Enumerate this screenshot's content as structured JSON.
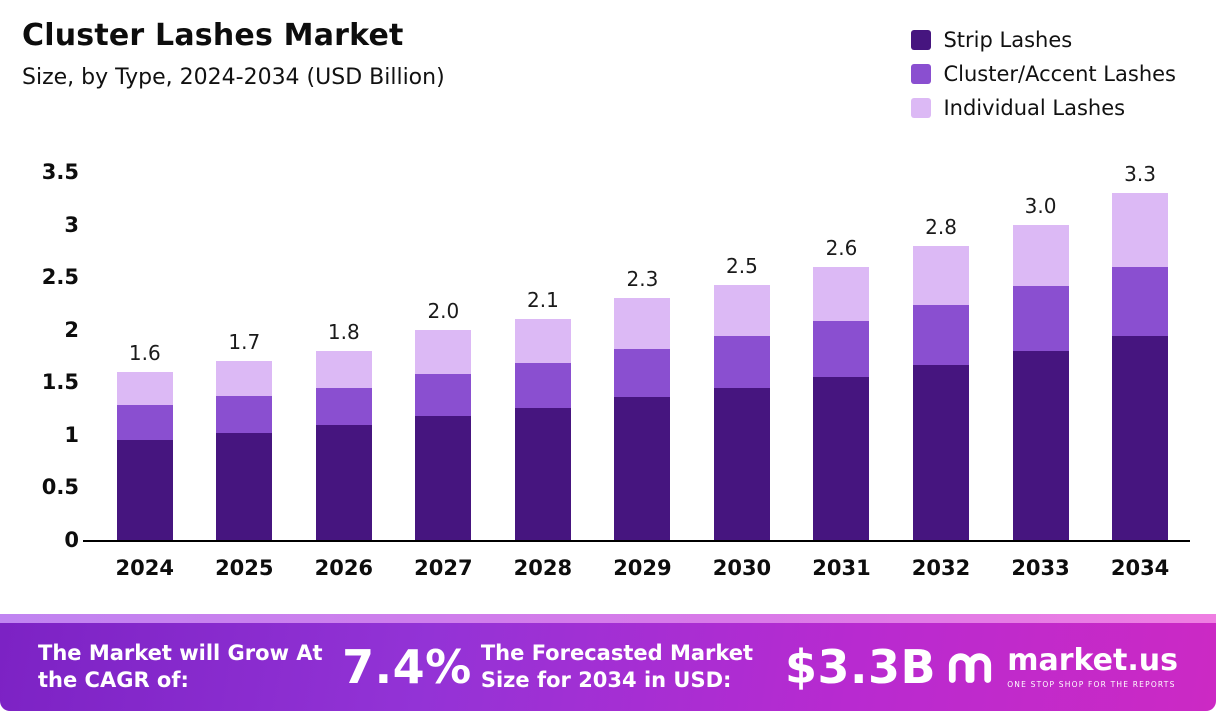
{
  "header": {
    "title": "Cluster Lashes Market",
    "subtitle": "Size, by Type, 2024-2034 (USD Billion)"
  },
  "legend": [
    {
      "label": "Strip Lashes",
      "color": "#46157f"
    },
    {
      "label": "Cluster/Accent Lashes",
      "color": "#8a4fd0"
    },
    {
      "label": "Individual Lashes",
      "color": "#dcb9f5"
    }
  ],
  "chart_data": {
    "type": "bar",
    "stacked": true,
    "title": "Cluster Lashes Market",
    "subtitle": "Size, by Type, 2024-2034 (USD Billion)",
    "categories": [
      "2024",
      "2025",
      "2026",
      "2027",
      "2028",
      "2029",
      "2030",
      "2031",
      "2032",
      "2033",
      "2034"
    ],
    "series": [
      {
        "name": "Strip Lashes",
        "color": "#46157f",
        "values": [
          0.95,
          1.02,
          1.09,
          1.18,
          1.26,
          1.36,
          1.45,
          1.55,
          1.66,
          1.8,
          1.94
        ]
      },
      {
        "name": "Cluster/Accent Lashes",
        "color": "#8a4fd0",
        "values": [
          0.33,
          0.35,
          0.36,
          0.4,
          0.42,
          0.46,
          0.49,
          0.53,
          0.58,
          0.62,
          0.66
        ]
      },
      {
        "name": "Individual Lashes",
        "color": "#dcb9f5",
        "values": [
          0.32,
          0.33,
          0.35,
          0.42,
          0.42,
          0.48,
          0.49,
          0.52,
          0.56,
          0.58,
          0.7
        ]
      }
    ],
    "totals": [
      "1.6",
      "1.7",
      "1.8",
      "2.0",
      "2.1",
      "2.3",
      "2.5",
      "2.6",
      "2.8",
      "3.0",
      "3.3"
    ],
    "y_ticks": [
      "3.5",
      "3",
      "2.5",
      "2",
      "1.5",
      "1",
      "0.5",
      "0"
    ],
    "ylim": [
      0,
      3.5
    ],
    "grid": false,
    "legend_position": "top-right"
  },
  "footer": {
    "cagr_label": "The Market will Grow At the CAGR of:",
    "cagr_value": "7.4%",
    "forecast_label": "The Forecasted Market Size for 2034 in USD:",
    "forecast_value": "$3.3B",
    "brand": "market.us",
    "brand_tagline": "ONE STOP SHOP FOR THE REPORTS"
  }
}
